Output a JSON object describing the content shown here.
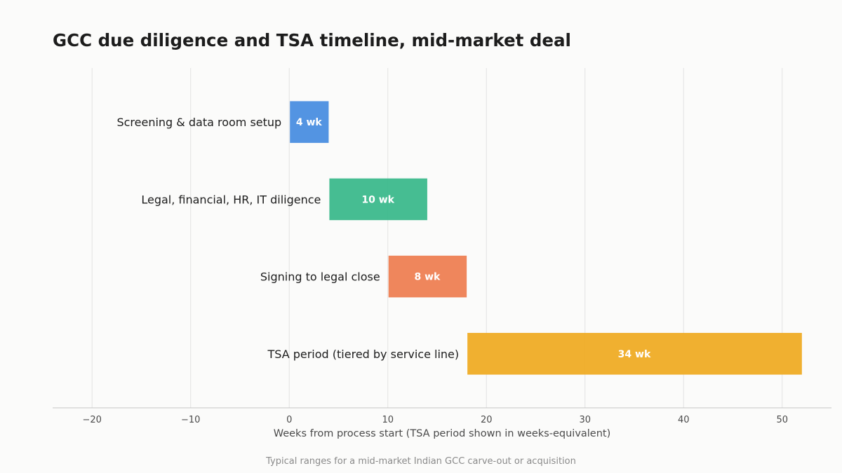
{
  "chart_data": {
    "type": "bar",
    "orientation": "horizontal-gantt",
    "title": "GCC due diligence and TSA timeline, mid-market deal",
    "xlabel": "Weeks from process start (TSA period shown in weeks-equivalent)",
    "ylabel": "",
    "caption": "Typical ranges for a mid-market Indian GCC carve-out or acquisition",
    "xlim": [
      -24,
      55
    ],
    "xticks": [
      -20,
      -10,
      0,
      10,
      20,
      30,
      40,
      50
    ],
    "xtick_labels": [
      "−20",
      "−10",
      "0",
      "10",
      "20",
      "30",
      "40",
      "50"
    ],
    "grid": "vertical",
    "tasks": [
      {
        "label": "Screening & data room setup",
        "start": 0,
        "duration": 4,
        "value_label": "4 wk",
        "color": "#4a8ee0"
      },
      {
        "label": "Legal, financial, HR, IT diligence",
        "start": 4,
        "duration": 10,
        "value_label": "10 wk",
        "color": "#3cb98c"
      },
      {
        "label": "Signing to legal close",
        "start": 10,
        "duration": 8,
        "value_label": "8 wk",
        "color": "#ee7f53"
      },
      {
        "label": "TSA period (tiered by service line)",
        "start": 18,
        "duration": 34,
        "value_label": "34 wk",
        "color": "#efac25"
      }
    ]
  }
}
